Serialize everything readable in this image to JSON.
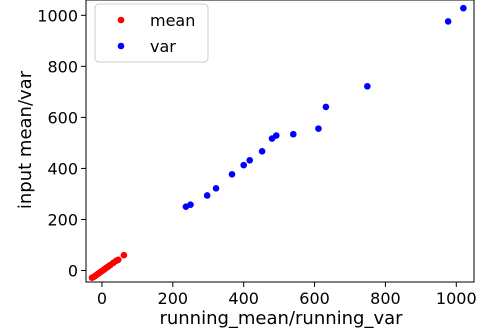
{
  "chart_data": {
    "type": "scatter",
    "xlabel": "running_mean/running_var",
    "ylabel": "input mean/var",
    "xlim": [
      -45,
      1050
    ],
    "ylim": [
      -45,
      1060
    ],
    "xticks": [
      0,
      200,
      400,
      600,
      800,
      1000
    ],
    "yticks": [
      0,
      200,
      400,
      600,
      800,
      1000
    ],
    "xtick_labels": [
      "0",
      "200",
      "400",
      "600",
      "800",
      "1000"
    ],
    "ytick_labels": [
      "0",
      "200",
      "400",
      "600",
      "800",
      "1000"
    ],
    "grid": false,
    "legend_position": "top-left",
    "series": [
      {
        "name": "mean",
        "color": "#ff0000",
        "points": [
          [
            -28,
            -28
          ],
          [
            -22,
            -24
          ],
          [
            -18,
            -20
          ],
          [
            -14,
            -16
          ],
          [
            -10,
            -12
          ],
          [
            -6,
            -8
          ],
          [
            -2,
            -4
          ],
          [
            2,
            0
          ],
          [
            6,
            4
          ],
          [
            10,
            8
          ],
          [
            14,
            12
          ],
          [
            18,
            16
          ],
          [
            24,
            22
          ],
          [
            32,
            30
          ],
          [
            40,
            38
          ],
          [
            46,
            42
          ],
          [
            62,
            60
          ]
        ]
      },
      {
        "name": "var",
        "color": "#0000ff",
        "points": [
          [
            237,
            250
          ],
          [
            250,
            258
          ],
          [
            297,
            294
          ],
          [
            322,
            322
          ],
          [
            367,
            377
          ],
          [
            400,
            413
          ],
          [
            417,
            432
          ],
          [
            452,
            467
          ],
          [
            480,
            517
          ],
          [
            492,
            529
          ],
          [
            540,
            534
          ],
          [
            611,
            556
          ],
          [
            632,
            641
          ],
          [
            749,
            722
          ],
          [
            977,
            976
          ],
          [
            1020,
            1028
          ]
        ]
      }
    ]
  }
}
